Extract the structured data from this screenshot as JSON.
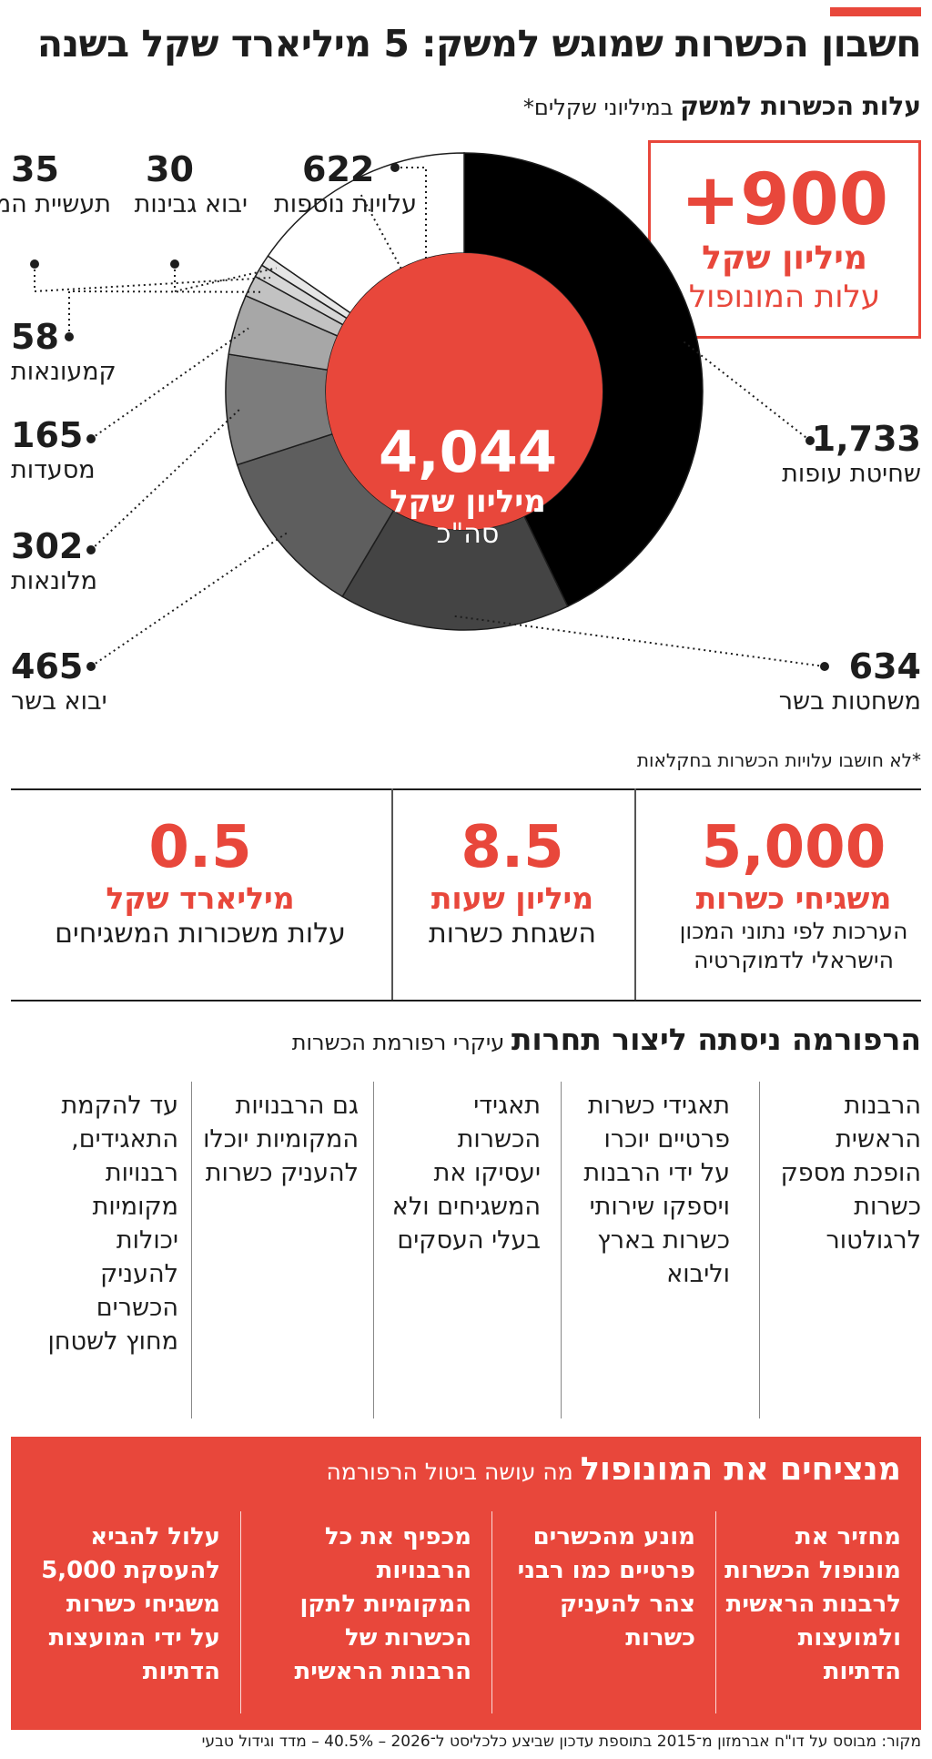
{
  "header": {
    "title": "חשבון הכשרות שמוגש למשק: 5 מיליארד שקל בשנה",
    "subtitle_bold": "עלות הכשרות למשק",
    "subtitle_rest": " במיליוני שקלים*"
  },
  "monopoly_callout": {
    "value": "+900",
    "unit": "מיליון שקל",
    "label": "עלות המונופול"
  },
  "chart_data": {
    "type": "pie",
    "title": "עלות הכשרות למשק",
    "unit": "במיליוני שקלים",
    "center": {
      "total": "4,044",
      "unit": "מיליון שקל",
      "label": "סה\"כ"
    },
    "slices": [
      {
        "label": "שחיטת עופות",
        "value": 1733,
        "display": "1,733",
        "color": "#000000"
      },
      {
        "label": "משחטות בשר",
        "value": 634,
        "display": "634",
        "color": "#444444"
      },
      {
        "label": "יבוא בשר",
        "value": 465,
        "display": "465",
        "color": "#5e5e5e"
      },
      {
        "label": "מלונאות",
        "value": 302,
        "display": "302",
        "color": "#7c7c7c"
      },
      {
        "label": "מסעדות",
        "value": 165,
        "display": "165",
        "color": "#a7a7a7"
      },
      {
        "label": "קמעונאות",
        "value": 58,
        "display": "58",
        "color": "#c2c2c2"
      },
      {
        "label": "תעשיית המזון",
        "value": 35,
        "display": "35",
        "color": "#d6d6d6"
      },
      {
        "label": "יבוא גבינות",
        "value": 30,
        "display": "30",
        "color": "#e6e6e6"
      },
      {
        "label": "עלויות נוספות",
        "value": 622,
        "display": "622",
        "color": "#ffffff"
      }
    ],
    "colors": {
      "center": "#e8473b",
      "outline": "#1d1d1d"
    }
  },
  "footnote": "*לא חושבו עלויות הכשרות בחקלאות",
  "stats": [
    {
      "value": "5,000",
      "unit": "משגיחי כשרות",
      "desc": "הערכות לפי נתוני המכון הישראלי לדמוקרטיה"
    },
    {
      "value": "8.5",
      "unit": "מיליון שעות",
      "desc": "השגחת כשרות"
    },
    {
      "value": "0.5",
      "unit": "מיליארד שקל",
      "desc": "עלות משכורות המשגיחים"
    }
  ],
  "reform": {
    "title_bold": "הרפורמה ניסתה ליצור תחרות",
    "title_rest": " עיקרי רפורמת הכשרות",
    "points": [
      "הרבנות הראשית הופכת מספק כשרות לרגולטור",
      "תאגידי כשרות פרטיים יוכרו על ידי הרבנות ויספקו שירותי כשרות בארץ וליבוא",
      "תאגידי הכשרות יעסיקו את המשגיחים ולא בעלי העסקים",
      "גם הרבנויות המקומיות יוכלו להעניק כשרות",
      "עד להקמת התאגידים, רבנויות מקומיות יכולות להעניק הכשרים מחוץ לשטחן"
    ]
  },
  "monopoly": {
    "title_bold": "מנציחים את המונופול",
    "title_rest": " מה עושה ביטול הרפורמה",
    "points": [
      "מחזיר את מונופול הכשרות לרבנות הראשית ולמועצות הדתיות",
      "מונע מהכשרים פרטיים כמו רבני צהר להעניק כשרות",
      "מכפיף את כל הרבנויות המקומיות לתקן הכשרות של הרבנות הראשית",
      "עלול להביא להעסקת 5,000 משגיחי כשרות על ידי המועצות הדתיות"
    ]
  },
  "source": "מקור: מבוסס על דו\"ח אברמזון מ־2015 בתוספת עדכון שביצע כלכליסט ל־2026 – 40.5% – מדד וגידול טבעי",
  "colors": {
    "accent": "#e8473b",
    "text": "#1d1d1d"
  }
}
